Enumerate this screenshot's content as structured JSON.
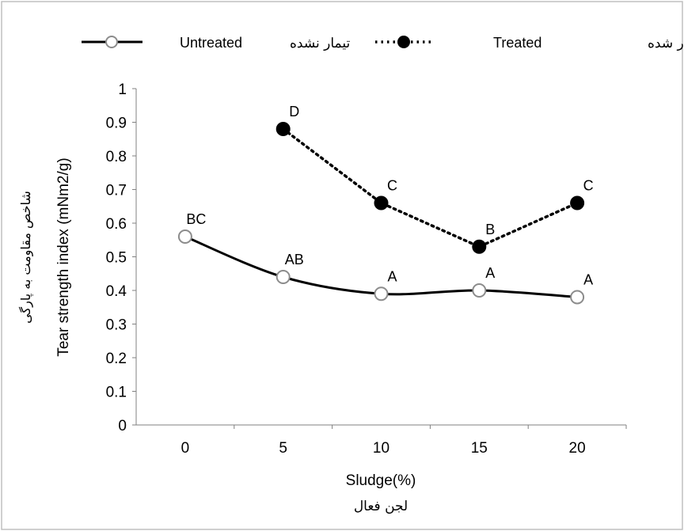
{
  "chart_data": {
    "type": "line",
    "categories": [
      "0",
      "5",
      "10",
      "15",
      "20"
    ],
    "series": [
      {
        "name": "Untreated",
        "name_fa": "تیمار نشده",
        "style": "solid-smooth",
        "marker": "open-circle",
        "values": [
          0.56,
          0.44,
          0.39,
          0.4,
          0.38
        ],
        "labels": [
          "BC",
          "AB",
          "A",
          "A",
          "A"
        ]
      },
      {
        "name": "Treated",
        "name_fa": "تیمار شده",
        "style": "dotted",
        "marker": "filled-circle",
        "values": [
          null,
          0.88,
          0.66,
          0.53,
          0.66
        ],
        "labels": [
          null,
          "D",
          "C",
          "B",
          "C"
        ]
      }
    ],
    "ylim": [
      0,
      1
    ],
    "yticks": [
      "0",
      "0.1",
      "0.2",
      "0.3",
      "0.4",
      "0.5",
      "0.6",
      "0.7",
      "0.8",
      "0.9",
      "1"
    ],
    "xlabel": "Sludge(%)",
    "xlabel_fa": "لجن فعال",
    "ylabel": "Tear strength index  (mNm2/g)",
    "ylabel_fa": "شاخص مقاومت به پارگی",
    "legend_position": "top",
    "grid": false,
    "colors": {
      "line": "#000000",
      "open_marker_stroke": "#8c8c8c",
      "frame": "#bfbfbf"
    }
  }
}
